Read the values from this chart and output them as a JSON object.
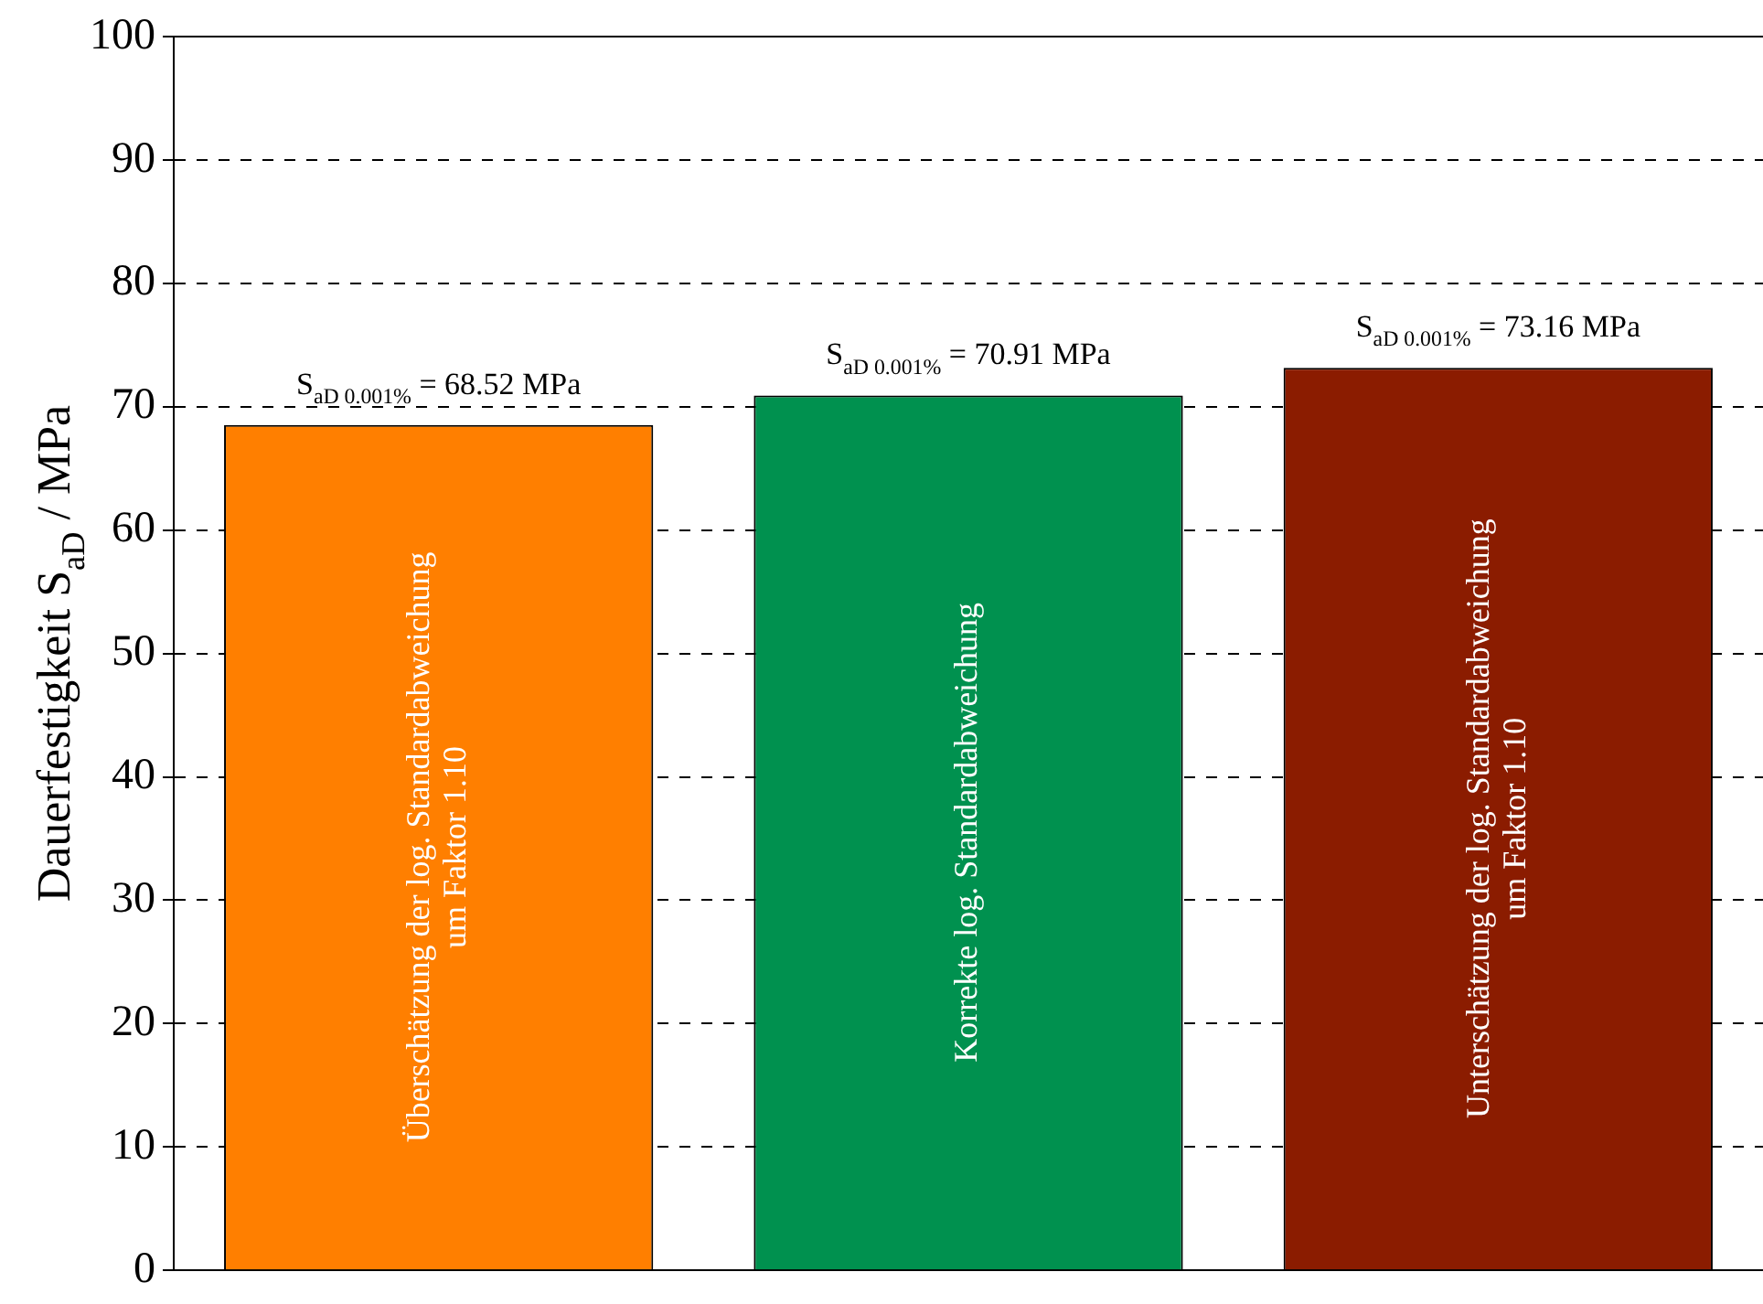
{
  "chart_data": {
    "type": "bar",
    "ylabel": "Dauerfestigkeit S$_{aD}$ / MPa",
    "categories": [
      "Überschätzung der log. Standardabweichung\num Faktor 1.10",
      "Korrekte log. Standardabweichung",
      "Unterschätzung der log. Standardabweichung\num Faktor 1.10"
    ],
    "values": [
      68.52,
      70.91,
      73.16
    ],
    "colors": [
      "#ff7f00",
      "#00914f",
      "#8b1c00"
    ],
    "value_labels": [
      "S$_{aD 0.001%}$ = 68.52 MPa",
      "S$_{aD 0.001%}$ = 70.91 MPa",
      "S$_{aD 0.001%}$ = 73.16 MPa"
    ],
    "ylim": [
      0,
      100
    ],
    "yticks": [
      0,
      10,
      20,
      30,
      40,
      50,
      60,
      70,
      80,
      90,
      100
    ],
    "grid": "y",
    "legend": false
  }
}
